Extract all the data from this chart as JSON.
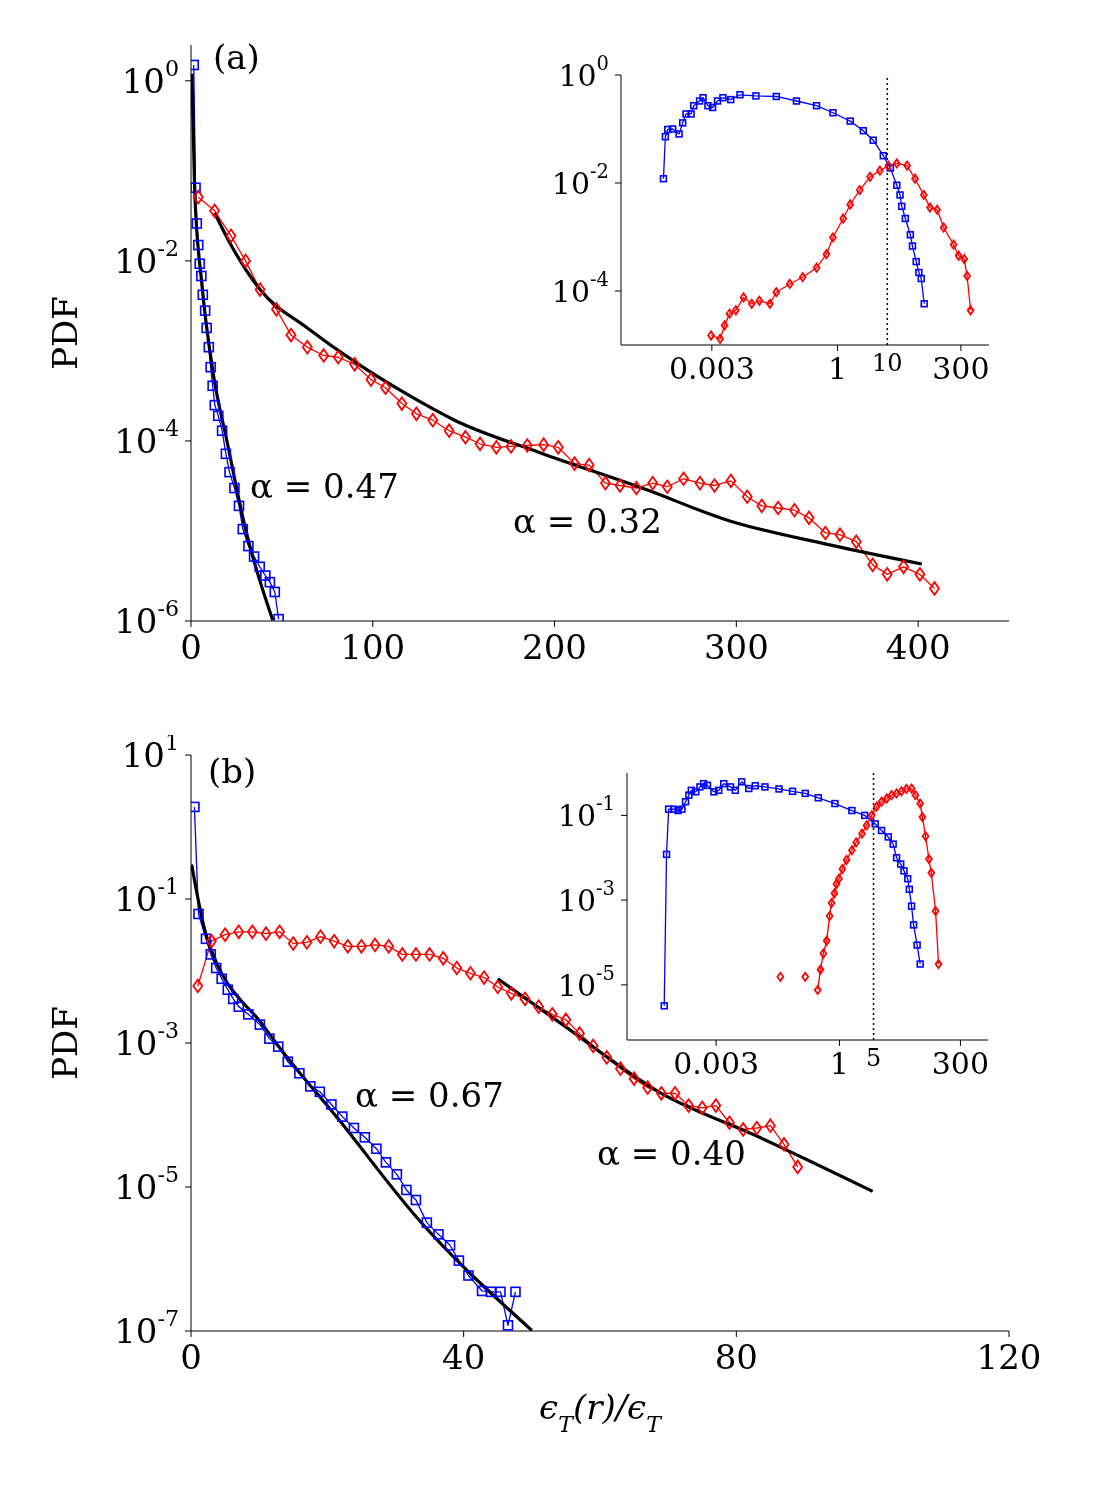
{
  "chart_data": [
    {
      "type": "line",
      "ylabel": "PDF",
      "log": "y",
      "xlim": [
        0,
        450
      ],
      "xticks": [
        0,
        100,
        200,
        300,
        400
      ],
      "ylim": [
        1e-06,
        2.5
      ],
      "yticks": [
        {
          "value": 1,
          "label": "10$^{0}$"
        },
        {
          "value": 0.01,
          "label": "10$^{-2}$"
        },
        {
          "value": 0.0001,
          "label": "10$^{-4}$"
        },
        {
          "value": 1e-06,
          "label": "10$^{-6}$"
        }
      ],
      "annotations": [
        "(a)",
        "α = 0.47",
        "α = 0.32"
      ],
      "series": [
        {
          "type": "line",
          "color": "#0000ff",
          "marker": "square",
          "x": [
            1.5,
            2.5,
            3.2,
            4.0,
            4.8,
            5.7,
            6.5,
            7.8,
            8.6,
            9.8,
            10.8,
            11.9,
            13.1,
            15.0,
            17.1,
            19.2,
            21.2,
            23.9,
            26.4,
            28.5,
            31.6,
            34.7,
            37.8,
            40.9,
            43.4,
            46.1,
            48.2
          ],
          "values": [
            1.5,
            0.065,
            0.026,
            0.015,
            0.0093,
            0.0068,
            0.0042,
            0.0028,
            0.0018,
            0.0011,
            0.00066,
            0.00041,
            0.00025,
            0.00019,
            0.00013,
            7.2e-05,
            4.5e-05,
            3e-05,
            1.9e-05,
            1.05e-05,
            6.8e-06,
            5.2e-06,
            4e-06,
            3.2e-06,
            2.7e-06,
            2.1e-06,
            1.05e-06
          ]
        },
        {
          "type": "line",
          "color": "#ff0000",
          "marker": "diamond",
          "x": [
            4,
            13,
            22,
            30,
            38,
            47,
            55,
            64,
            73,
            81,
            90,
            99,
            107,
            116,
            124,
            133,
            142,
            151,
            159,
            168,
            176,
            185,
            194,
            202,
            211,
            219,
            228,
            236,
            245,
            254,
            262,
            271,
            280,
            288,
            297,
            306,
            314,
            323,
            332,
            340,
            349,
            357,
            366,
            375,
            383,
            392,
            401,
            409
          ],
          "values": [
            0.051,
            0.036,
            0.019,
            0.01,
            0.0048,
            0.0029,
            0.0015,
            0.0011,
            0.00089,
            0.00085,
            0.00071,
            0.00048,
            0.00039,
            0.00026,
            0.0002,
            0.00017,
            0.00013,
            0.00011,
            9.3e-05,
            8.5e-05,
            8.7e-05,
            8.9e-05,
            9.1e-05,
            8.5e-05,
            5.6e-05,
            5.4e-05,
            3.4e-05,
            3.2e-05,
            3e-05,
            3.4e-05,
            3.1e-05,
            3.8e-05,
            3.4e-05,
            3.2e-05,
            3.6e-05,
            2.4e-05,
            1.9e-05,
            1.8e-05,
            1.7e-05,
            1.4e-05,
            9.5e-06,
            9.1e-06,
            7.6e-06,
            4.2e-06,
            3.3e-06,
            4e-06,
            3.3e-06,
            2.3e-06
          ]
        },
        {
          "type": "line",
          "color": "#000000",
          "marker": "none",
          "x": [
            0.5,
            2,
            6,
            12,
            20,
            30,
            45
          ],
          "values": [
            1.2,
            0.062,
            0.0055,
            0.0006,
            9.5e-05,
            1.05e-05,
            1.02e-06
          ]
        },
        {
          "type": "line",
          "color": "#000000",
          "marker": "none",
          "x": [
            13,
            22,
            38,
            64,
            90,
            120,
            145,
            192,
            250,
            296,
            350,
            402
          ],
          "values": [
            0.034,
            0.015,
            0.0048,
            0.0018,
            0.00076,
            0.00032,
            0.00017,
            7.4e-05,
            2.9e-05,
            1.3e-05,
            7.1e-06,
            4.3e-06
          ]
        }
      ]
    },
    {
      "type": "line",
      "log": "xy",
      "xlim": [
        4.5e-05,
        1100
      ],
      "xticks": [
        0.003,
        1,
        300
      ],
      "ylim": [
        1e-05,
        1
      ],
      "yticks": [
        {
          "value": 1,
          "label": "10$^{0}$"
        },
        {
          "value": 0.01,
          "label": "10$^{-2}$"
        },
        {
          "value": 0.0001,
          "label": "10$^{-4}$"
        }
      ],
      "ref_lines": [
        {
          "axis": "x",
          "value": 10,
          "label": "10",
          "color": "#000000",
          "line_style": "dotted"
        }
      ],
      "series": [
        {
          "type": "line",
          "color": "#0000ff",
          "marker": "square",
          "x": [
            0.00032,
            0.00035,
            0.00039,
            0.00049,
            0.00066,
            0.00078,
            0.00091,
            0.00115,
            0.0013,
            0.0017,
            0.002,
            0.0025,
            0.0031,
            0.0039,
            0.005,
            0.0072,
            0.011,
            0.023,
            0.059,
            0.15,
            0.38,
            0.81,
            1.8,
            3.3,
            5.2,
            8.3,
            11.5,
            15.5,
            18,
            19.5,
            23,
            29,
            32,
            38,
            43,
            48,
            55
          ],
          "values": [
            0.012,
            0.072,
            0.098,
            0.1,
            0.081,
            0.13,
            0.19,
            0.19,
            0.27,
            0.33,
            0.38,
            0.27,
            0.25,
            0.33,
            0.38,
            0.35,
            0.43,
            0.41,
            0.4,
            0.33,
            0.27,
            0.2,
            0.14,
            0.093,
            0.062,
            0.032,
            0.019,
            0.0091,
            0.006,
            0.0037,
            0.0022,
            0.0011,
            0.00068,
            0.00035,
            0.00022,
            0.00017,
            5.8e-05
          ]
        },
        {
          "type": "line",
          "color": "#ff0000",
          "marker": "diamond",
          "x": [
            0.0029,
            0.0044,
            0.0054,
            0.0068,
            0.0091,
            0.013,
            0.019,
            0.027,
            0.044,
            0.059,
            0.11,
            0.2,
            0.38,
            0.6,
            0.81,
            1.3,
            1.8,
            2.8,
            4.5,
            7.1,
            10.5,
            15.5,
            25,
            36,
            54,
            72,
            100,
            135,
            214,
            270,
            350,
            400,
            470
          ],
          "values": [
            1.5e-05,
            1.3e-05,
            2.3e-05,
            3.8e-05,
            4.4e-05,
            7.6e-05,
            5.8e-05,
            6.6e-05,
            5.8e-05,
            9.5e-05,
            0.000135,
            0.00018,
            0.00027,
            0.00048,
            0.00098,
            0.0022,
            0.004,
            0.0074,
            0.013,
            0.017,
            0.021,
            0.023,
            0.021,
            0.012,
            0.006,
            0.0035,
            0.0032,
            0.0015,
            0.00072,
            0.00045,
            0.00039,
            0.00019,
            4.4e-05
          ]
        }
      ]
    },
    {
      "type": "line",
      "ylabel": "PDF",
      "xlabel": "ϵ$_{T}$(r)/ϵ$_{T}$",
      "log": "y",
      "xlim": [
        0,
        120
      ],
      "xticks": [
        0,
        40,
        80,
        120
      ],
      "ylim": [
        1e-07,
        10
      ],
      "yticks": [
        {
          "value": 10,
          "label": "10$^{1}$"
        },
        {
          "value": 0.1,
          "label": "10$^{-1}$"
        },
        {
          "value": 0.001,
          "label": "10$^{-3}$"
        },
        {
          "value": 1e-05,
          "label": "10$^{-5}$"
        },
        {
          "value": 1e-07,
          "label": "10$^{-7}$"
        }
      ],
      "annotations": [
        "(b)",
        "α = 0.67",
        "α = 0.40"
      ],
      "series": [
        {
          "type": "line",
          "color": "#0000ff",
          "marker": "square",
          "x": [
            0.5,
            1.1,
            2.2,
            2.9,
            3.7,
            4.5,
            5.4,
            6.2,
            7.0,
            8.4,
            10.1,
            11.5,
            12.8,
            14.2,
            15.9,
            17.5,
            18.9,
            20.6,
            22.2,
            23.9,
            25.5,
            27.2,
            28.6,
            30.2,
            31.6,
            33.0,
            34.6,
            36.3,
            38.0,
            39.3,
            40.7,
            42.7,
            44.0,
            45.4,
            46.5,
            47.6
          ],
          "values": [
            1.9,
            0.062,
            0.028,
            0.017,
            0.011,
            0.0078,
            0.0055,
            0.0041,
            0.0032,
            0.0025,
            0.0018,
            0.00115,
            0.00089,
            0.00055,
            0.00038,
            0.00025,
            0.00021,
            0.00014,
            9.5e-05,
            6.6e-05,
            4.9e-05,
            3.4e-05,
            2.2e-05,
            1.5e-05,
            9.1e-06,
            6.6e-06,
            3.2e-06,
            2.2e-06,
            1.55e-06,
            9.5e-07,
            5.9e-07,
            3.6e-07,
            3.5e-07,
            3.5e-07,
            1.2e-07,
            3.5e-07
          ]
        },
        {
          "type": "line",
          "color": "#ff0000",
          "marker": "diamond",
          "x": [
            1,
            3,
            5,
            7,
            9,
            11,
            13,
            15,
            17,
            19,
            21,
            23,
            25,
            27,
            29,
            31,
            33,
            35,
            37,
            39,
            41,
            43,
            45,
            47,
            49,
            51,
            53,
            55,
            57,
            59,
            61,
            63,
            65,
            67,
            69,
            71,
            73,
            75,
            77,
            79,
            81,
            83,
            85,
            87,
            89
          ],
          "values": [
            0.0062,
            0.026,
            0.032,
            0.035,
            0.035,
            0.033,
            0.035,
            0.024,
            0.025,
            0.03,
            0.026,
            0.022,
            0.022,
            0.023,
            0.022,
            0.017,
            0.017,
            0.017,
            0.015,
            0.011,
            0.0093,
            0.0081,
            0.006,
            0.0049,
            0.0041,
            0.0032,
            0.0025,
            0.0021,
            0.00135,
            0.00091,
            0.00063,
            0.00044,
            0.00032,
            0.00024,
            0.0002,
            0.0002,
            0.000135,
            0.000126,
            0.000135,
            7.8e-05,
            6.3e-05,
            6.6e-05,
            7.1e-05,
            3.9e-05,
            1.9e-05
          ]
        },
        {
          "type": "line",
          "color": "#000000",
          "marker": "none",
          "x": [
            0.1,
            2.3,
            10.9,
            22,
            33,
            50
          ],
          "values": [
            0.3,
            0.03,
            0.0016,
            7.9e-05,
            3.9e-06,
            1.02e-07
          ]
        },
        {
          "type": "line",
          "color": "#000000",
          "marker": "none",
          "x": [
            45,
            54,
            69,
            83,
            100
          ],
          "values": [
            0.0078,
            0.00195,
            0.0002,
            5.1e-05,
            8.7e-06
          ]
        }
      ]
    },
    {
      "type": "line",
      "log": "xy",
      "xlim": [
        4.5e-05,
        1100
      ],
      "xticks": [
        0.003,
        1,
        300
      ],
      "ylim": [
        5e-07,
        1
      ],
      "yticks": [
        {
          "value": 0.1,
          "label": "10$^{-1}$"
        },
        {
          "value": 0.001,
          "label": "10$^{-3}$"
        },
        {
          "value": 1e-05,
          "label": "10$^{-5}$"
        }
      ],
      "ref_lines": [
        {
          "axis": "x",
          "value": 5,
          "label": "5",
          "color": "#000000",
          "line_style": "dotted"
        }
      ],
      "series": [
        {
          "type": "line",
          "color": "#0000ff",
          "marker": "square",
          "x": [
            0.00026,
            0.00029,
            0.00032,
            0.00041,
            0.0005,
            0.0006,
            0.00071,
            0.00083,
            0.00093,
            0.00115,
            0.0014,
            0.00166,
            0.002,
            0.0027,
            0.0034,
            0.0043,
            0.0059,
            0.0074,
            0.01,
            0.014,
            0.019,
            0.03,
            0.058,
            0.11,
            0.2,
            0.37,
            0.81,
            1.8,
            3.3,
            5.4,
            7.3,
            10,
            12.6,
            14.8,
            18,
            21,
            25,
            27,
            30,
            33,
            39,
            45
          ],
          "values": [
            3.2e-06,
            0.012,
            0.14,
            0.14,
            0.13,
            0.14,
            0.21,
            0.3,
            0.39,
            0.36,
            0.47,
            0.56,
            0.51,
            0.36,
            0.39,
            0.56,
            0.47,
            0.39,
            0.62,
            0.43,
            0.5,
            0.47,
            0.42,
            0.37,
            0.33,
            0.26,
            0.19,
            0.13,
            0.1,
            0.063,
            0.044,
            0.031,
            0.021,
            0.01,
            0.0071,
            0.0049,
            0.0032,
            0.0018,
            0.00072,
            0.00026,
            8.7e-05,
            3.1e-05
          ]
        },
        {
          "type": "line",
          "color": "#ff0000",
          "marker": "diamond",
          "x": [
            0.062,
            0.1,
            0.2,
            0.28,
            0.36,
            0.41,
            0.47,
            0.55,
            0.63,
            0.69,
            0.79,
            0.87,
            0.98,
            1.15,
            1.4,
            1.8,
            2.2,
            2.9,
            3.6,
            4.6,
            5.8,
            7.3,
            9.3,
            11.7,
            14.8,
            18.6,
            23.5,
            30,
            36,
            45,
            50,
            58,
            68,
            76,
            93,
            107
          ],
          "values": [
            1.55e-05,
            null,
            1.55e-05,
            null,
            7.6e-06,
            2.3e-05,
            5.5e-05,
            0.00011,
            0.00042,
            0.00085,
            0.00145,
            0.0024,
            0.0032,
            0.0054,
            0.0089,
            0.015,
            0.023,
            0.037,
            0.058,
            0.1,
            0.16,
            0.21,
            0.25,
            0.3,
            0.33,
            0.37,
            0.42,
            0.43,
            0.3,
            0.19,
            0.091,
            0.032,
            0.0093,
            0.0044,
            0.00055,
            3.1e-05
          ]
        }
      ]
    }
  ]
}
